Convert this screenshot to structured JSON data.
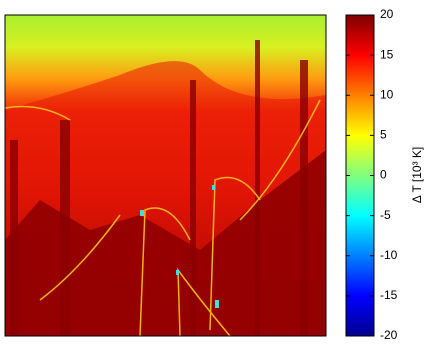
{
  "chart_data": {
    "type": "heatmap",
    "colormap": "jet",
    "colorbar": {
      "label": "Δ T [10³ K]",
      "clim": [
        -20,
        20
      ],
      "ticks": [
        -20,
        -15,
        -10,
        -5,
        0,
        5,
        10,
        15,
        20
      ]
    }
  }
}
